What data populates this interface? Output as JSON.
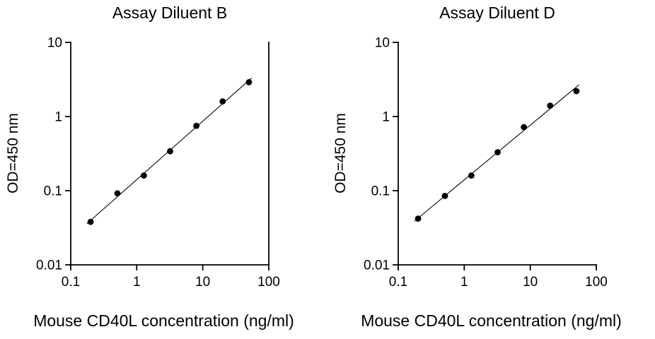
{
  "figure": {
    "background": "#ffffff",
    "text_color": "#000000",
    "marker_color": "#000000"
  },
  "chart_data": [
    {
      "type": "scatter",
      "title": "Assay Diluent B",
      "xlabel": "Mouse CD40L concentration (ng/ml)",
      "ylabel": "OD=450 nm",
      "xscale": "log",
      "yscale": "log",
      "xlim": [
        0.1,
        100
      ],
      "ylim": [
        0.01,
        10
      ],
      "x_ticks": [
        0.1,
        1,
        10,
        100
      ],
      "x_tick_labels": [
        "0.1",
        "1",
        "10",
        "100"
      ],
      "y_ticks": [
        0.01,
        0.1,
        1,
        10
      ],
      "y_tick_labels": [
        "0.01",
        "0.1",
        "1",
        "10"
      ],
      "x": [
        0.2,
        0.51,
        1.28,
        3.2,
        8,
        20,
        50
      ],
      "y": [
        0.038,
        0.092,
        0.16,
        0.34,
        0.75,
        1.6,
        2.9
      ],
      "fit_line": true,
      "right_spine": true,
      "grid": false,
      "legend": false,
      "marker_color": "#000000"
    },
    {
      "type": "scatter",
      "title": "Assay Diluent D",
      "xlabel": "Mouse CD40L concentration (ng/ml)",
      "ylabel": "OD=450 nm",
      "xscale": "log",
      "yscale": "log",
      "xlim": [
        0.1,
        100
      ],
      "ylim": [
        0.01,
        10
      ],
      "x_ticks": [
        0.1,
        1,
        10,
        100
      ],
      "x_tick_labels": [
        "0.1",
        "1",
        "10",
        "100"
      ],
      "y_ticks": [
        0.01,
        0.1,
        1,
        10
      ],
      "y_tick_labels": [
        "0.01",
        "0.1",
        "1",
        "10"
      ],
      "x": [
        0.2,
        0.51,
        1.28,
        3.2,
        8,
        20,
        50
      ],
      "y": [
        0.042,
        0.085,
        0.16,
        0.33,
        0.72,
        1.4,
        2.2
      ],
      "fit_line": true,
      "right_spine": false,
      "grid": false,
      "legend": false,
      "marker_color": "#000000"
    }
  ]
}
